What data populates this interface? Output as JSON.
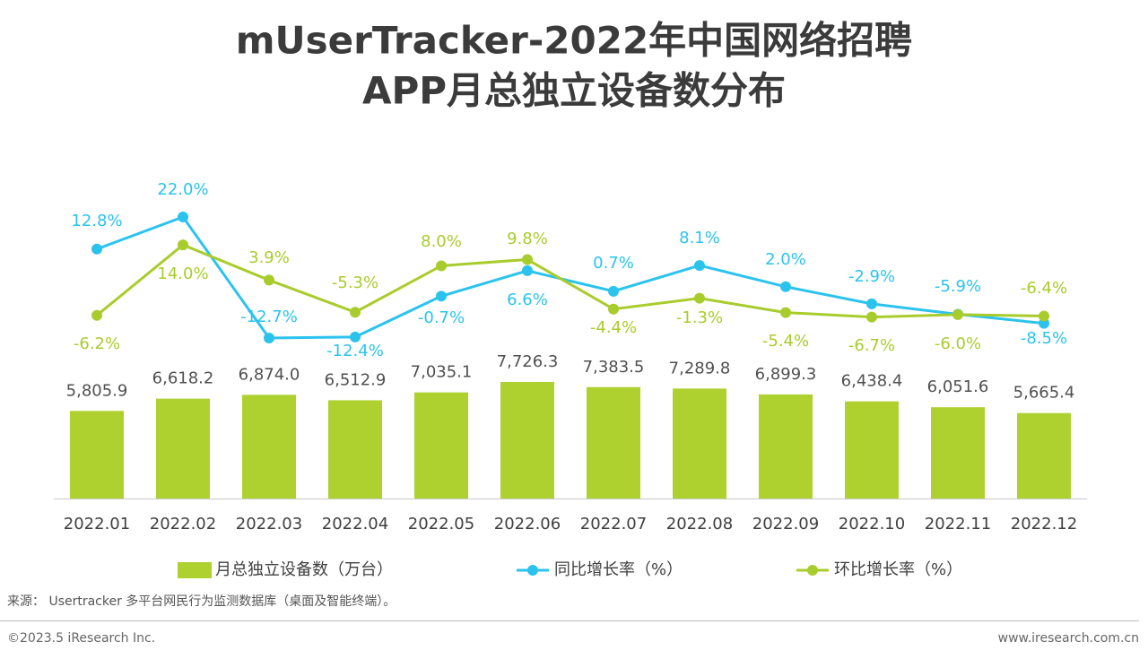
{
  "title": [
    "mUserTracker-2022年中国网络招聘",
    "APP月总独立设备数分布"
  ],
  "chart_data": {
    "type": "bar",
    "categories": [
      "2022.01",
      "2022.02",
      "2022.03",
      "2022.04",
      "2022.05",
      "2022.06",
      "2022.07",
      "2022.08",
      "2022.09",
      "2022.10",
      "2022.11",
      "2022.12"
    ],
    "series": [
      {
        "name": "月总独立设备数（万台）",
        "type": "bar",
        "color": "#afd130",
        "values": [
          5805.9,
          6618.2,
          6874.0,
          6512.9,
          7035.1,
          7726.3,
          7383.5,
          7289.8,
          6899.3,
          6438.4,
          6051.6,
          5665.4
        ],
        "value_labels": [
          "5,805.9",
          "6,618.2",
          "6,874.0",
          "6,512.9",
          "7,035.1",
          "7,726.3",
          "7,383.5",
          "7,289.8",
          "6,899.3",
          "6,438.4",
          "6,051.6",
          "5,665.4"
        ]
      },
      {
        "name": "同比增长率（%）",
        "type": "line",
        "color": "#2bc3ee",
        "values": [
          12.8,
          22.0,
          -12.7,
          -12.4,
          -0.7,
          6.6,
          0.7,
          8.1,
          2.0,
          -2.9,
          -5.9,
          -8.5
        ],
        "value_labels": [
          "12.8%",
          "22.0%",
          "-12.7%",
          "-12.4%",
          "-0.7%",
          "6.6%",
          "0.7%",
          "8.1%",
          "2.0%",
          "-2.9%",
          "-5.9%",
          "-8.5%"
        ]
      },
      {
        "name": "环比增长率（%）",
        "type": "line",
        "color": "#a9cc2d",
        "values": [
          -6.2,
          14.0,
          3.9,
          -5.3,
          8.0,
          9.8,
          -4.4,
          -1.3,
          -5.4,
          -6.7,
          -6.0,
          -6.4
        ],
        "value_labels": [
          "-6.2%",
          "14.0%",
          "3.9%",
          "-5.3%",
          "8.0%",
          "9.8%",
          "-4.4%",
          "-1.3%",
          "-5.4%",
          "-6.7%",
          "-6.0%",
          "-6.4%"
        ]
      }
    ]
  },
  "source": "来源： Usertracker 多平台网民行为监测数据库（桌面及智能终端）。",
  "copyright": "©2023.5 iResearch Inc.",
  "website": "www.iresearch.com.cn"
}
